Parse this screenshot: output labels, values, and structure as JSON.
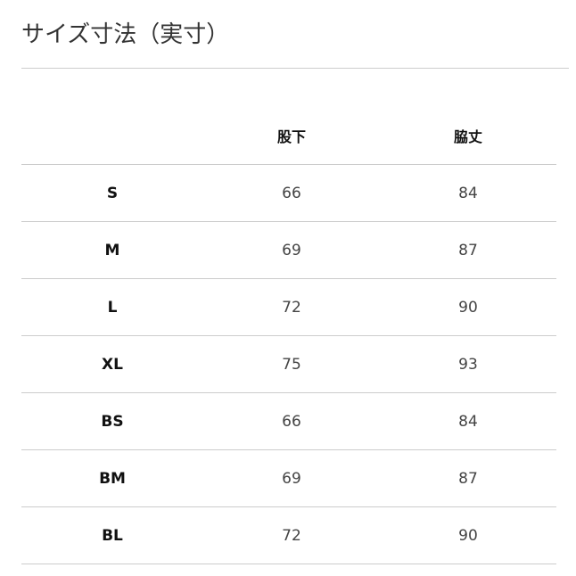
{
  "title": "サイズ寸法（実寸）",
  "table": {
    "headers": [
      "",
      "股下",
      "脇丈"
    ],
    "rows": [
      [
        "S",
        "66",
        "84"
      ],
      [
        "M",
        "69",
        "87"
      ],
      [
        "L",
        "72",
        "90"
      ],
      [
        "XL",
        "75",
        "93"
      ],
      [
        "BS",
        "66",
        "84"
      ],
      [
        "BM",
        "69",
        "87"
      ],
      [
        "BL",
        "72",
        "90"
      ]
    ]
  }
}
